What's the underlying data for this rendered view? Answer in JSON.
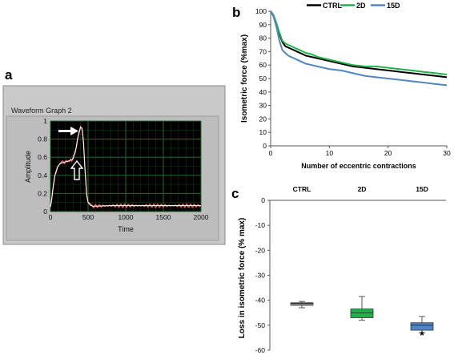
{
  "panel_labels": {
    "a": "a",
    "b": "b",
    "c": "c"
  },
  "colors": {
    "ctrl": "#000000",
    "d2": "#1fb24a",
    "d15": "#4f86c6",
    "trace": "#ff5a5a",
    "trace_fit": "#ffffff",
    "waveform_bg": "#000000",
    "waveform_grid": "#1f6b2c",
    "window": "#c7c7c7"
  },
  "chart_data": [
    {
      "panel": "a",
      "type": "line",
      "window_title": "Waveform Graph 2",
      "xlabel": "Time",
      "ylabel": "Amplitude",
      "xlim": [
        0,
        2000
      ],
      "ylim": [
        0,
        1
      ],
      "xticks": [
        "0",
        "500",
        "1000",
        "1500",
        "2000"
      ],
      "yticks": [
        "0",
        "0.2",
        "0.4",
        "0.6",
        "0.8",
        "1"
      ],
      "grid": true,
      "series": [
        {
          "x": [
            0,
            20,
            40,
            60,
            80,
            100,
            130,
            160,
            200,
            250,
            300,
            340,
            360,
            380,
            400,
            420,
            440,
            460,
            480,
            500,
            530,
            560,
            600,
            800,
            1000,
            1200,
            1400,
            1600,
            1800,
            2000
          ],
          "values": [
            0.05,
            0.15,
            0.3,
            0.4,
            0.46,
            0.5,
            0.53,
            0.54,
            0.55,
            0.56,
            0.58,
            0.7,
            0.8,
            0.88,
            0.93,
            0.92,
            0.75,
            0.45,
            0.2,
            0.1,
            0.07,
            0.06,
            0.06,
            0.065,
            0.065,
            0.065,
            0.065,
            0.065,
            0.065,
            0.065
          ]
        }
      ],
      "annotations": [
        "filled-arrow-peak",
        "outline-arrow-plateau"
      ]
    },
    {
      "panel": "b",
      "type": "line",
      "xlabel": "Number of eccentric contractions",
      "ylabel": "Isometric force (%max)",
      "xlim": [
        0,
        30
      ],
      "ylim": [
        0,
        100
      ],
      "xticks": [
        "0",
        "10",
        "20",
        "30"
      ],
      "yticks": [
        "0",
        "10",
        "20",
        "30",
        "40",
        "50",
        "60",
        "70",
        "80",
        "90",
        "100"
      ],
      "legend": "top",
      "x": [
        0,
        0.5,
        1,
        1.5,
        2,
        2.5,
        3,
        4,
        5,
        6,
        7,
        8,
        10,
        12,
        14,
        16,
        18,
        20,
        22,
        24,
        26,
        28,
        30
      ],
      "series": [
        {
          "name": "CTRL",
          "values": [
            100,
            97,
            90,
            83,
            77,
            74,
            73,
            71,
            69,
            67,
            66,
            65,
            63,
            61,
            59,
            58,
            57,
            56,
            55,
            54,
            53,
            52,
            51
          ]
        },
        {
          "name": "2D",
          "values": [
            100,
            97,
            91,
            84,
            78,
            76,
            75,
            73,
            71,
            69,
            68,
            66,
            64,
            62,
            60,
            59,
            59,
            58,
            57,
            56,
            55,
            54,
            53
          ]
        },
        {
          "name": "15D",
          "values": [
            100,
            96,
            88,
            78,
            71,
            69,
            67,
            65,
            63,
            61,
            60,
            59,
            57,
            56,
            54,
            52,
            51,
            50,
            49,
            48,
            47,
            46,
            45
          ]
        }
      ]
    },
    {
      "panel": "c",
      "type": "box",
      "ylabel": "Loss in isometric force (% max)",
      "ylim": [
        -60,
        0
      ],
      "yticks": [
        "0",
        "-10",
        "-20",
        "-30",
        "-40",
        "-50",
        "-60"
      ],
      "categories": [
        "CTRL",
        "2D",
        "15D"
      ],
      "boxes": [
        {
          "name": "CTRL",
          "min": -43,
          "q1": -42,
          "median": -41.5,
          "q3": -41,
          "max": -40.5
        },
        {
          "name": "2D",
          "min": -48,
          "q1": -47,
          "median": -45,
          "q3": -43.5,
          "max": -38.5
        },
        {
          "name": "15D",
          "min": -53,
          "q1": -52,
          "median": -50,
          "q3": -49,
          "max": -46.5
        }
      ],
      "significance": {
        "category": "15D",
        "label": "*"
      }
    }
  ]
}
